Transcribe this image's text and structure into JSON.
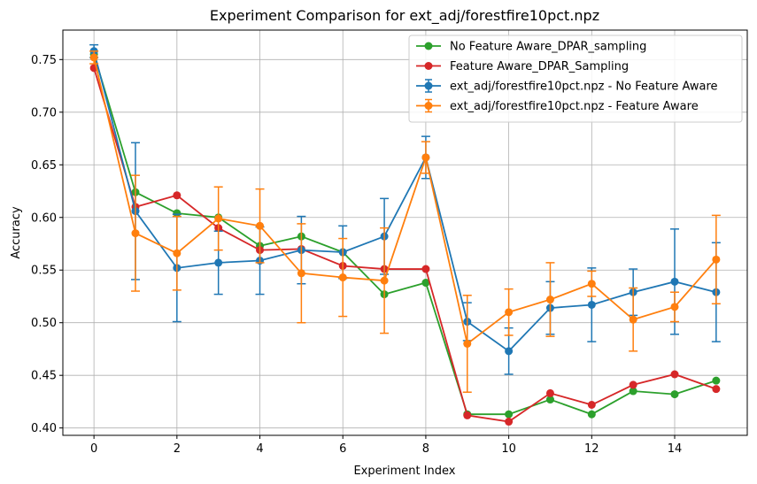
{
  "chart_data": {
    "type": "line",
    "title": "Experiment Comparison for ext_adj/forestfire10pct.npz",
    "xlabel": "Experiment Index",
    "ylabel": "Accuracy",
    "xlim": [
      -0.75,
      15.75
    ],
    "ylim": [
      0.393,
      0.778
    ],
    "xticks": [
      0,
      2,
      4,
      6,
      8,
      10,
      12,
      14
    ],
    "yticks": [
      0.4,
      0.45,
      0.5,
      0.55,
      0.6,
      0.65,
      0.7,
      0.75
    ],
    "xtick_labels": [
      "0",
      "2",
      "4",
      "6",
      "8",
      "10",
      "12",
      "14"
    ],
    "ytick_labels": [
      "0.40",
      "0.45",
      "0.50",
      "0.55",
      "0.60",
      "0.65",
      "0.70",
      "0.75"
    ],
    "grid": true,
    "legend_position": "top-right",
    "x": [
      0,
      1,
      2,
      3,
      4,
      5,
      6,
      7,
      8,
      9,
      10,
      11,
      12,
      13,
      14,
      15
    ],
    "series": [
      {
        "name": "No Feature Aware_DPAR_sampling",
        "color": "#2ca02c",
        "errorbars": false,
        "values": [
          0.755,
          0.624,
          0.604,
          0.6,
          0.573,
          0.582,
          0.567,
          0.527,
          0.538,
          0.413,
          0.413,
          0.427,
          0.413,
          0.435,
          0.432,
          0.445
        ]
      },
      {
        "name": "Feature Aware_DPAR_Sampling",
        "color": "#d62728",
        "errorbars": false,
        "values": [
          0.742,
          0.61,
          0.621,
          0.59,
          0.569,
          0.57,
          0.554,
          0.551,
          0.551,
          0.412,
          0.406,
          0.433,
          0.422,
          0.441,
          0.451,
          0.437
        ]
      },
      {
        "name": "ext_adj/forestfire10pct.npz - No Feature Aware",
        "color": "#1f77b4",
        "errorbars": true,
        "values": [
          0.758,
          0.606,
          0.552,
          0.557,
          0.559,
          0.569,
          0.567,
          0.582,
          0.657,
          0.501,
          0.473,
          0.514,
          0.517,
          0.529,
          0.539,
          0.529
        ],
        "errors": [
          0.006,
          0.065,
          0.051,
          0.03,
          0.032,
          0.032,
          0.025,
          0.036,
          0.02,
          0.018,
          0.022,
          0.025,
          0.035,
          0.022,
          0.05,
          0.047
        ]
      },
      {
        "name": "ext_adj/forestfire10pct.npz - Feature Aware",
        "color": "#ff7f0e",
        "errorbars": true,
        "values": [
          0.752,
          0.585,
          0.566,
          0.599,
          0.592,
          0.547,
          0.543,
          0.54,
          0.657,
          0.48,
          0.51,
          0.522,
          0.537,
          0.503,
          0.515,
          0.56
        ],
        "errors": [
          0.006,
          0.055,
          0.035,
          0.03,
          0.035,
          0.047,
          0.037,
          0.05,
          0.015,
          0.046,
          0.022,
          0.035,
          0.012,
          0.03,
          0.014,
          0.042
        ]
      }
    ],
    "legend_order": [
      0,
      1,
      2,
      3
    ]
  }
}
